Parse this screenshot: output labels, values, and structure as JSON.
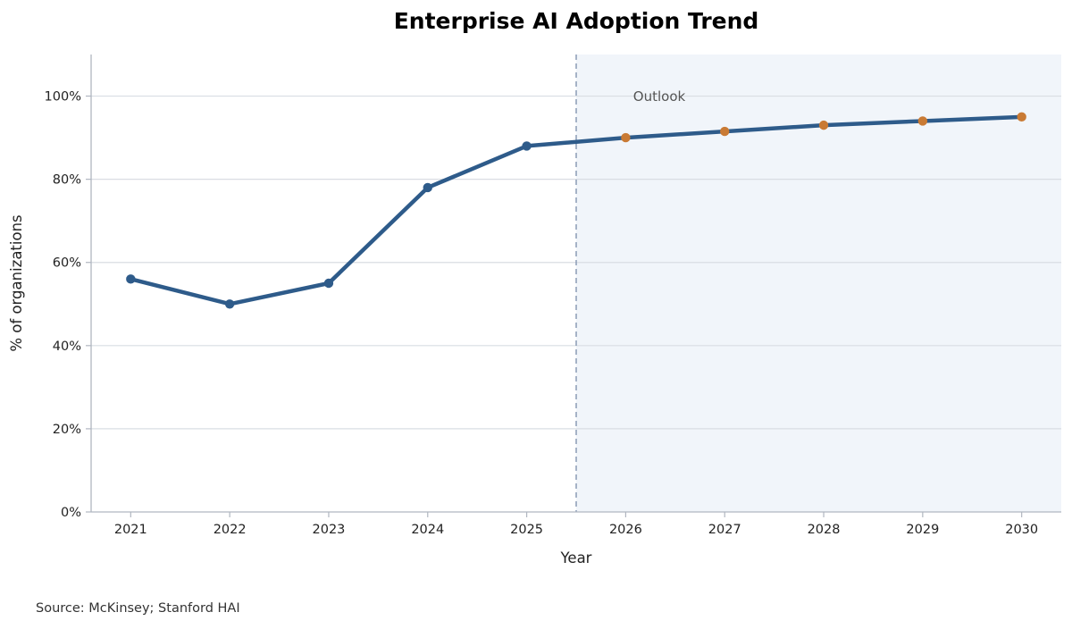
{
  "chart_data": {
    "type": "line",
    "title": "Enterprise AI Adoption Trend",
    "xlabel": "Year",
    "ylabel": "% of organizations",
    "source": "Source: McKinsey; Stanford HAI",
    "x": [
      2021,
      2022,
      2023,
      2024,
      2025,
      2026,
      2027,
      2028,
      2029,
      2030
    ],
    "y": [
      56,
      50,
      55,
      78,
      88,
      90,
      91.5,
      93,
      94,
      95
    ],
    "y_tick_labels": [
      "0%",
      "20%",
      "40%",
      "60%",
      "80%",
      "100%"
    ],
    "y_ticks": [
      0,
      20,
      40,
      60,
      80,
      100
    ],
    "ylim": [
      0,
      110
    ],
    "xlim": [
      2020.6,
      2030.4
    ],
    "forecast_start": 2025.5,
    "forecast_label": "Outlook",
    "grid": "horizontal",
    "colors": {
      "line": "#2e5b8a",
      "actual_marker": "#2e5b8a",
      "forecast_marker": "#c97a34",
      "forecast_shade": "#f1f5fa",
      "divider": "#8a9bb5",
      "grid": "#d9dde3",
      "axis": "#b0b6c0"
    }
  }
}
